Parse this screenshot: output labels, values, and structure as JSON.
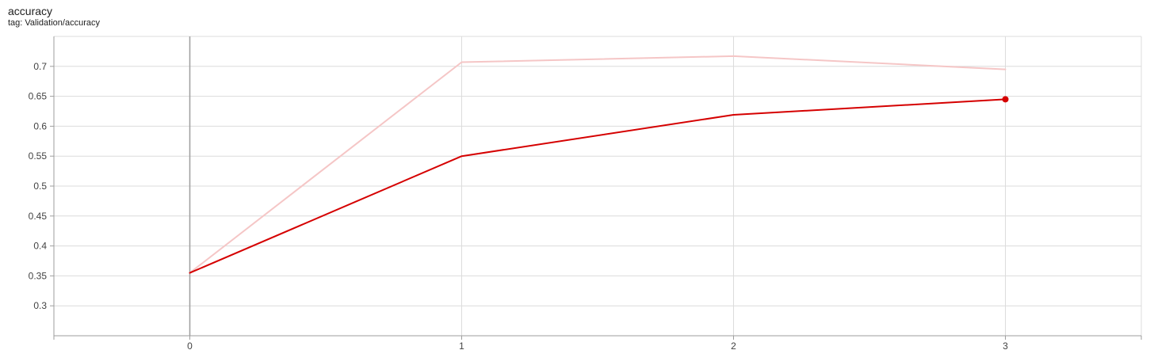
{
  "card": {
    "title": "accuracy",
    "subtitle": "tag: Validation/accuracy"
  },
  "chart_data": {
    "type": "line",
    "title": "accuracy",
    "subtitle": "tag: Validation/accuracy",
    "xlabel": "",
    "ylabel": "",
    "xlim": [
      -0.5,
      3.5
    ],
    "ylim": [
      0.25,
      0.75
    ],
    "x_ticks": [
      0,
      1,
      2,
      3
    ],
    "y_ticks": [
      0.3,
      0.35,
      0.4,
      0.45,
      0.5,
      0.55,
      0.6,
      0.65,
      0.7
    ],
    "grid": true,
    "series": [
      {
        "role": "raw",
        "color": "#f5c6c6",
        "x": [
          0,
          1,
          2,
          3
        ],
        "y": [
          0.355,
          0.707,
          0.717,
          0.695
        ]
      },
      {
        "role": "smoothed",
        "color": "#d50000",
        "x": [
          0,
          1,
          2,
          3
        ],
        "y": [
          0.355,
          0.55,
          0.619,
          0.645
        ]
      }
    ],
    "highlighted_point": {
      "x": 3,
      "y": 0.645,
      "color": "#d50000"
    }
  }
}
